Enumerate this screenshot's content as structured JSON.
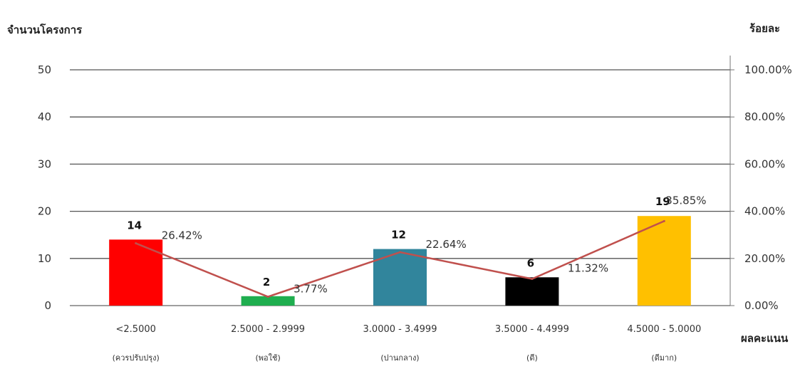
{
  "chart_data": {
    "type": "bar",
    "y_left_label": "จำนวนโครงการ",
    "y_right_label": "ร้อยละ",
    "x_label": "ผลคะแนน",
    "y_left_ticks": [
      "0",
      "10",
      "20",
      "30",
      "40",
      "50"
    ],
    "y_right_ticks": [
      "0.00%",
      "20.00%",
      "40.00%",
      "60.00%",
      "80.00%",
      "100.00%"
    ],
    "ylim": [
      0,
      50
    ],
    "y2lim": [
      0,
      100
    ],
    "categories": [
      "<2.5000",
      "2.5000 - 2.9999",
      "3.0000 - 3.4999",
      "3.5000 - 4.4999",
      "4.5000 - 5.0000"
    ],
    "category_sublabels": [
      "(ควรปรับปรุง)",
      "(พอใช้)",
      "(ปานกลาง)",
      "(ดี)",
      "(ดีมาก)"
    ],
    "series": [
      {
        "type": "bar",
        "values": [
          14,
          2,
          12,
          6,
          19
        ],
        "value_labels": [
          "14",
          "2",
          "12",
          "6",
          "19"
        ]
      },
      {
        "type": "line",
        "values": [
          26.42,
          3.77,
          22.64,
          11.32,
          35.85
        ],
        "value_labels": [
          "26.42%",
          "3.77%",
          "22.64%",
          "11.32%",
          "35.85%"
        ]
      }
    ],
    "bar_colors": [
      "#ff0000",
      "#1fae4f",
      "#31859c",
      "#000000",
      "#ffc000"
    ],
    "line_color": "#c0504d",
    "grid": true
  }
}
